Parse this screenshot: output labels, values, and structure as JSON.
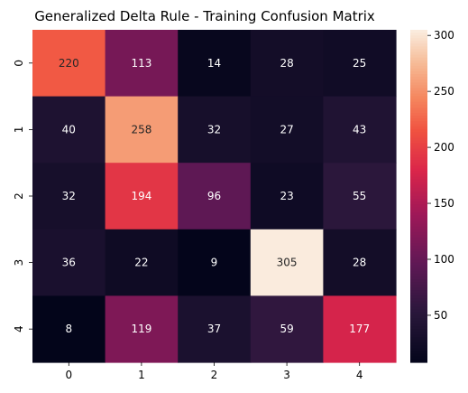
{
  "chart_data": {
    "type": "heatmap",
    "title": "Generalized Delta Rule - Training Confusion Matrix",
    "x_ticks": [
      "0",
      "1",
      "2",
      "3",
      "4"
    ],
    "y_ticks": [
      "0",
      "1",
      "2",
      "3",
      "4"
    ],
    "matrix": [
      [
        220,
        113,
        14,
        28,
        25
      ],
      [
        40,
        258,
        32,
        27,
        43
      ],
      [
        32,
        194,
        96,
        23,
        55
      ],
      [
        36,
        22,
        9,
        305,
        28
      ],
      [
        8,
        119,
        37,
        59,
        177
      ]
    ],
    "vmin": 8,
    "vmax": 305,
    "colormap": "rocket",
    "colorbar_ticks": [
      50,
      100,
      150,
      200,
      250,
      300
    ],
    "colorbar_tick_labels": [
      "50",
      "100",
      "150",
      "200",
      "250",
      "300"
    ]
  }
}
